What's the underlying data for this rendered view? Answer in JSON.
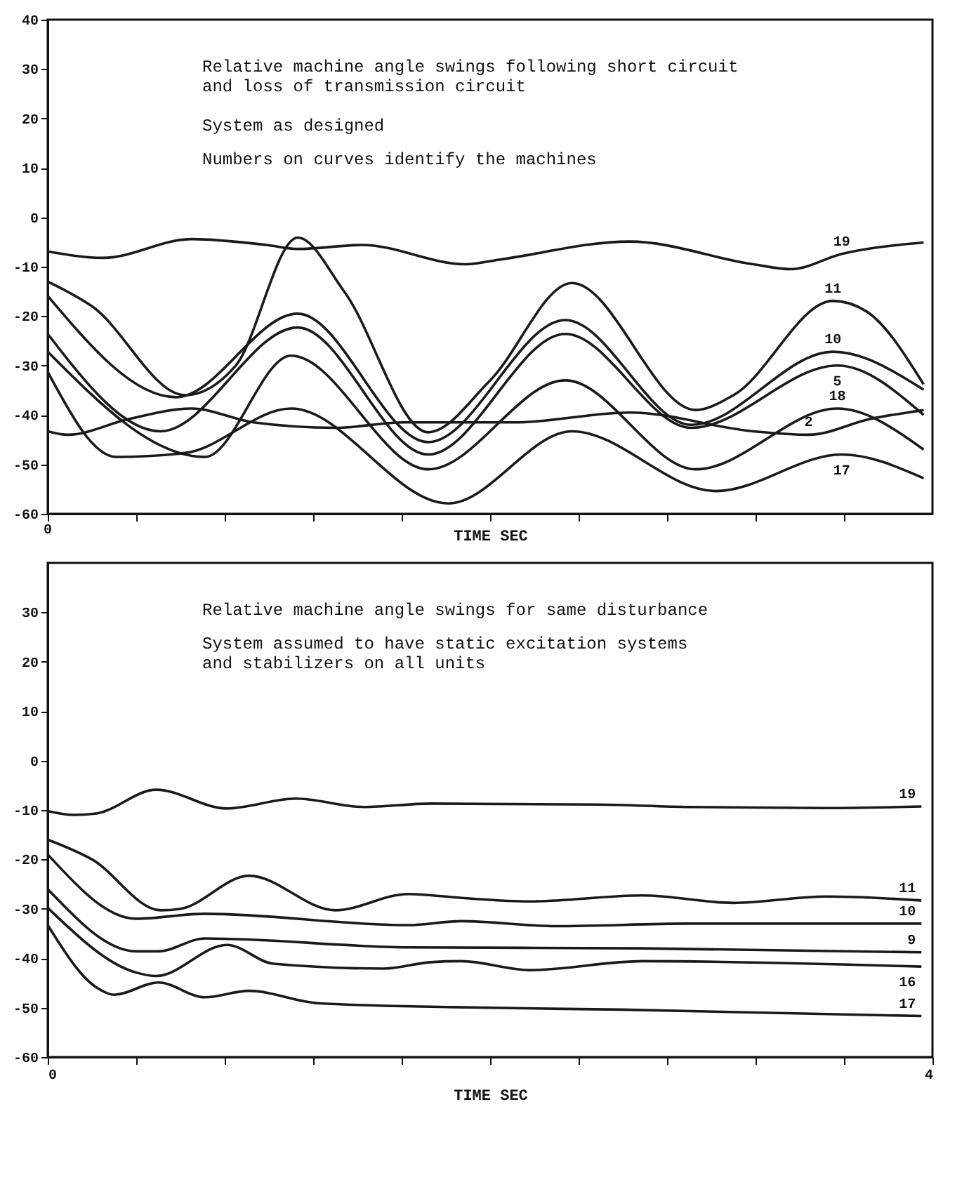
{
  "chart_data": [
    {
      "type": "line",
      "xlabel": "TIME SEC",
      "xlim": [
        0,
        4
      ],
      "ylim": [
        -60,
        40
      ],
      "xticks": [
        {
          "value": 0,
          "label": null
        },
        {
          "value": 0.4,
          "label": null
        },
        {
          "value": 0.8,
          "label": null
        },
        {
          "value": 1.2,
          "label": null
        },
        {
          "value": 1.6,
          "label": null
        },
        {
          "value": 2.0,
          "label": null
        },
        {
          "value": 2.4,
          "label": null
        },
        {
          "value": 2.8,
          "label": null
        },
        {
          "value": 3.2,
          "label": null
        },
        {
          "value": 3.6,
          "label": null
        }
      ],
      "yticks": [
        -60,
        -50,
        -40,
        -30,
        -20,
        -10,
        0,
        10,
        20,
        30,
        40
      ],
      "grid": false,
      "legend": false,
      "marker": "none",
      "line_style": "solid",
      "tick_labels": "y",
      "annotations": [
        "Relative machine angle swings following short circuit\n  and loss of transmission circuit",
        "System as designed",
        "Numbers on curves identify the machines",
        "0"
      ],
      "series": [
        {
          "name": "19",
          "color": "#1a1a1a",
          "x": [
            0,
            0.25,
            0.65,
            0.99,
            1.13,
            1.42,
            1.89,
            2.05,
            2.63,
            3.19,
            3.36,
            3.59,
            3.96
          ],
          "values": [
            -6.9,
            -8.2,
            -4.4,
            -5.6,
            -6.4,
            -5.6,
            -9.5,
            -8.5,
            -4.9,
            -9.5,
            -10.5,
            -7.4,
            -5.1
          ]
        },
        {
          "name": "11",
          "color": "#1a1a1a",
          "x": [
            0,
            0.2,
            0.62,
            0.85,
            1.13,
            1.34,
            1.72,
            2.0,
            2.37,
            2.93,
            3.1,
            3.55,
            3.7,
            3.96
          ],
          "values": [
            -13,
            -18,
            -36,
            -30,
            -4.1,
            -15,
            -43.5,
            -33,
            -13.3,
            -39,
            -36,
            -16.9,
            -19,
            -33.8
          ]
        },
        {
          "name": "10",
          "color": "#1a1a1a",
          "x": [
            0,
            0.58,
            1.13,
            1.72,
            2.34,
            2.91,
            3.55,
            3.96
          ],
          "values": [
            -15.9,
            -36.4,
            -19.5,
            -45.5,
            -20.8,
            -42,
            -27.2,
            -34.9
          ]
        },
        {
          "name": "5",
          "color": "#1a1a1a",
          "x": [
            0,
            0.51,
            1.13,
            1.72,
            2.34,
            2.91,
            3.57,
            3.96
          ],
          "values": [
            -23.6,
            -43.3,
            -22.3,
            -48,
            -23.6,
            -42.6,
            -30,
            -40
          ]
        },
        {
          "name": "18",
          "color": "#1a1a1a",
          "x": [
            0,
            0.71,
            1.1,
            1.72,
            2.34,
            2.93,
            3.57,
            3.96
          ],
          "values": [
            -27.2,
            -48.5,
            -28,
            -51,
            -33,
            -51,
            -38.7,
            -47
          ]
        },
        {
          "name": "2",
          "color": "#1a1a1a",
          "x": [
            0,
            0.09,
            0.37,
            0.65,
            0.93,
            1.3,
            1.61,
            2.11,
            2.63,
            3.19,
            3.44,
            3.72,
            3.96
          ],
          "values": [
            -43.3,
            -44,
            -40.8,
            -38.7,
            -41.5,
            -42.6,
            -41.5,
            -41.5,
            -39.5,
            -43.3,
            -44,
            -40.8,
            -39
          ]
        },
        {
          "name": "17",
          "color": "#1a1a1a",
          "x": [
            0,
            0.31,
            0.62,
            1.1,
            1.81,
            2.37,
            3.02,
            3.59,
            3.96
          ],
          "values": [
            -31.3,
            -48.5,
            -47.7,
            -38.7,
            -57.9,
            -43.3,
            -55.4,
            -48,
            -52.8
          ]
        }
      ]
    },
    {
      "type": "line",
      "xlabel": "TIME SEC",
      "xlim": [
        0,
        4
      ],
      "ylim": [
        -60,
        40
      ],
      "xticks": [
        {
          "value": 0,
          "label": "0"
        },
        {
          "value": 0.4,
          "label": null
        },
        {
          "value": 0.8,
          "label": null
        },
        {
          "value": 1.2,
          "label": null
        },
        {
          "value": 1.6,
          "label": null
        },
        {
          "value": 2.0,
          "label": null
        },
        {
          "value": 2.4,
          "label": null
        },
        {
          "value": 2.8,
          "label": null
        },
        {
          "value": 3.2,
          "label": null
        },
        {
          "value": 3.6,
          "label": null
        },
        {
          "value": 4,
          "label": "4"
        }
      ],
      "yticks": [
        -60,
        -50,
        -40,
        -30,
        -20,
        -10,
        0,
        10,
        20,
        30
      ],
      "grid": false,
      "legend": false,
      "marker": "none",
      "line_style": "solid",
      "annotations": [
        "Relative machine angle swings for same disturbance",
        "System assumed to have static excitation systems\n  and stabilizers on all units"
      ],
      "series": [
        {
          "name": "19",
          "color": "#1a1a1a",
          "x": [
            0,
            0.12,
            0.22,
            0.49,
            0.81,
            1.12,
            1.43,
            1.73,
            2.49,
            2.9,
            3.52,
            3.95
          ],
          "values": [
            -10.2,
            -11,
            -10.7,
            -5.9,
            -9.7,
            -7.7,
            -9.4,
            -8.7,
            -8.9,
            -9.4,
            -9.6,
            -9.3
          ]
        },
        {
          "name": "11",
          "color": "#1a1a1a",
          "x": [
            0,
            0.2,
            0.51,
            0.6,
            0.91,
            1.3,
            1.63,
            1.87,
            2.18,
            2.69,
            3.1,
            3.52,
            3.95
          ],
          "values": [
            -16,
            -20,
            -30.3,
            -30,
            -23.3,
            -30.3,
            -27,
            -27.8,
            -28.5,
            -27.3,
            -28.8,
            -27.5,
            -28.3
          ]
        },
        {
          "name": "10",
          "color": "#1a1a1a",
          "x": [
            0,
            0.4,
            0.71,
            1.63,
            1.87,
            2.3,
            2.9,
            3.95
          ],
          "values": [
            -19,
            -32,
            -31,
            -33.3,
            -32.5,
            -33.5,
            -33,
            -33
          ]
        },
        {
          "name": "9",
          "color": "#1a1a1a",
          "x": [
            0,
            0.4,
            0.5,
            0.71,
            1.63,
            2.69,
            3.95
          ],
          "values": [
            -26,
            -38.6,
            -38.6,
            -36,
            -37.8,
            -38,
            -38.8
          ]
        },
        {
          "name": "16",
          "color": "#1a1a1a",
          "x": [
            0,
            0.4,
            0.49,
            0.81,
            1.02,
            1.52,
            1.73,
            1.87,
            2.18,
            2.69,
            3.95
          ],
          "values": [
            -29.8,
            -42.9,
            -43.6,
            -37.3,
            -41.1,
            -42.1,
            -40.8,
            -40.6,
            -42.4,
            -40.6,
            -41.7
          ]
        },
        {
          "name": "17",
          "color": "#1a1a1a",
          "x": [
            0,
            0.22,
            0.3,
            0.5,
            0.71,
            0.91,
            1.22,
            1.83,
            2.59,
            3.95
          ],
          "values": [
            -33.3,
            -45.9,
            -47.4,
            -44.9,
            -47.9,
            -46.6,
            -49.1,
            -49.9,
            -50.4,
            -51.7
          ]
        }
      ]
    }
  ]
}
